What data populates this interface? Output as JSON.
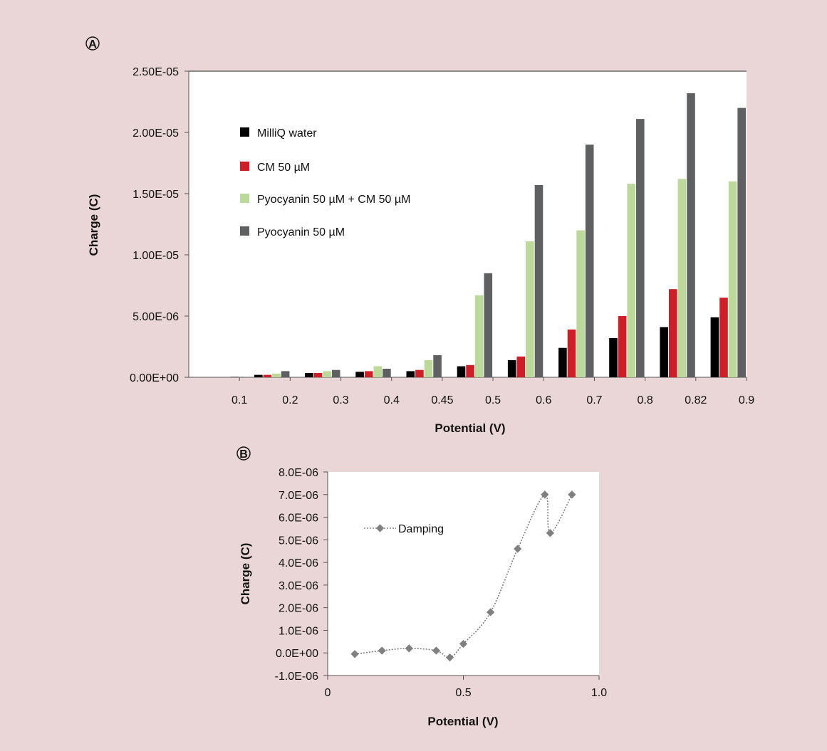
{
  "colors": {
    "figure_background": "#ead6d6",
    "plot_background": "#ffffff",
    "axis": "#555555",
    "series_colors": [
      "#000000",
      "#cc1f27",
      "#bcd89a",
      "#5f6062"
    ],
    "damping_line": "#808080"
  },
  "chart_data": [
    {
      "panel": "A",
      "type": "bar",
      "xlabel": "Potential (V)",
      "ylabel": "Charge (C)",
      "categories": [
        "0.1",
        "0.2",
        "0.3",
        "0.4",
        "0.45",
        "0.5",
        "0.6",
        "0.7",
        "0.8",
        "0.82",
        "0.9"
      ],
      "y_tick_labels": [
        "0.00E+00",
        "5.00E-06",
        "1.00E-05",
        "1.50E-05",
        "2.00E-05",
        "2.50E-05"
      ],
      "ylim": [
        0,
        2.5e-05
      ],
      "grid": false,
      "legend_position": "top-left",
      "series": [
        {
          "name": "MilliQ water",
          "values": [
            0,
            2e-07,
            3.5e-07,
            4.5e-07,
            5e-07,
            9e-07,
            1.4e-06,
            2.4e-06,
            3.2e-06,
            4.1e-06,
            4.9e-06
          ]
        },
        {
          "name": "CM 50 µM",
          "values": [
            0,
            2e-07,
            3.5e-07,
            5e-07,
            6e-07,
            1e-06,
            1.7e-06,
            3.9e-06,
            5e-06,
            7.2e-06,
            6.5e-06
          ]
        },
        {
          "name": "Pyocyanin 50 µM + CM 50 µM",
          "values": [
            0,
            3e-07,
            5e-07,
            9e-07,
            1.4e-06,
            6.7e-06,
            1.11e-05,
            1.2e-05,
            1.58e-05,
            1.62e-05,
            1.6e-05
          ]
        },
        {
          "name": "Pyocyanin 50 µM",
          "values": [
            5e-08,
            5e-07,
            6e-07,
            7e-07,
            1.8e-06,
            8.5e-06,
            1.57e-05,
            1.9e-05,
            2.11e-05,
            2.32e-05,
            2.2e-05
          ]
        }
      ]
    },
    {
      "panel": "B",
      "type": "line",
      "xlabel": "Potential (V)",
      "ylabel": "Charge (C)",
      "xlim": [
        0,
        1.0
      ],
      "ylim": [
        -1e-06,
        8e-06
      ],
      "x_tick_values": [
        0,
        0.5,
        1.0
      ],
      "x_tick_labels": [
        "0",
        "0.5",
        "1.0"
      ],
      "y_tick_values": [
        -1e-06,
        0,
        1e-06,
        2e-06,
        3e-06,
        4e-06,
        5e-06,
        6e-06,
        7e-06,
        8e-06
      ],
      "y_tick_labels": [
        "-1.0E-06",
        "0.0E+00",
        "1.0E-06",
        "2.0E-06",
        "3.0E-06",
        "4.0E-06",
        "5.0E-06",
        "6.0E-06",
        "7.0E-06",
        "8.0E-06"
      ],
      "grid": false,
      "legend_position": "top-left",
      "series": [
        {
          "name": "Damping",
          "x": [
            0.1,
            0.2,
            0.3,
            0.4,
            0.45,
            0.5,
            0.6,
            0.7,
            0.8,
            0.82,
            0.9
          ],
          "y": [
            -5e-08,
            1e-07,
            2e-07,
            1e-07,
            -2e-07,
            4e-07,
            1.8e-06,
            4.6e-06,
            7e-06,
            5.3e-06,
            7e-06
          ]
        }
      ]
    }
  ],
  "panels": {
    "a_letter": "A",
    "b_letter": "B"
  }
}
